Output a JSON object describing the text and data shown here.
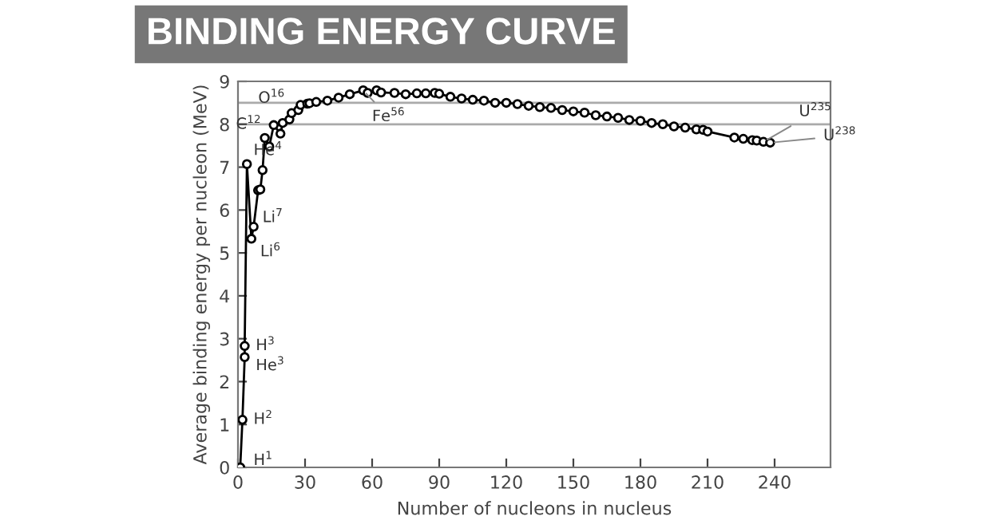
{
  "chart_data": {
    "type": "line",
    "title": "BINDING ENERGY CURVE",
    "xlabel": "Number of nucleons in nucleus",
    "ylabel": "Average binding energy per nucleon (MeV)",
    "x": [
      1,
      2,
      3,
      3,
      4,
      6,
      7,
      9,
      10,
      11,
      12,
      14,
      16,
      19,
      20,
      23,
      24,
      27,
      28,
      31,
      32,
      35,
      40,
      45,
      50,
      56,
      58,
      62,
      64,
      70,
      75,
      80,
      84,
      88,
      90,
      95,
      100,
      105,
      110,
      115,
      120,
      125,
      130,
      135,
      140,
      145,
      150,
      155,
      160,
      165,
      170,
      175,
      180,
      185,
      190,
      195,
      200,
      205,
      208,
      210,
      222,
      226,
      230,
      232,
      235,
      238
    ],
    "series": [
      {
        "color": "#000000",
        "values": [
          0,
          1.11,
          2.57,
          2.83,
          7.07,
          5.33,
          5.61,
          6.46,
          6.48,
          6.93,
          7.68,
          7.48,
          7.98,
          7.78,
          8.03,
          8.11,
          8.26,
          8.33,
          8.45,
          8.48,
          8.49,
          8.52,
          8.55,
          8.62,
          8.7,
          8.79,
          8.73,
          8.79,
          8.74,
          8.73,
          8.7,
          8.72,
          8.72,
          8.73,
          8.71,
          8.64,
          8.6,
          8.57,
          8.55,
          8.5,
          8.5,
          8.47,
          8.43,
          8.4,
          8.38,
          8.33,
          8.3,
          8.27,
          8.21,
          8.18,
          8.15,
          8.1,
          8.08,
          8.03,
          8.0,
          7.95,
          7.92,
          7.88,
          7.87,
          7.83,
          7.69,
          7.66,
          7.63,
          7.62,
          7.59,
          7.57
        ]
      }
    ],
    "marker": "circle",
    "line_style": "solid",
    "grid": false,
    "legend": false,
    "xlim": [
      0,
      265
    ],
    "ylim": [
      0,
      9
    ],
    "xticks": [
      0,
      30,
      60,
      90,
      120,
      150,
      180,
      210,
      240
    ],
    "yticks": [
      0,
      1,
      2,
      3,
      4,
      5,
      6,
      7,
      8,
      9
    ],
    "ref_lines": [
      {
        "axis": "y",
        "value": 8.5,
        "color": "#aaaaaa"
      },
      {
        "axis": "y",
        "value": 8,
        "color": "#aaaaaa"
      }
    ],
    "annotations": [
      {
        "text": "H$^{1}$",
        "x": 1,
        "y": 0
      },
      {
        "text": "H$^{2}$",
        "x": 2,
        "y": 1.11
      },
      {
        "text": "H$^{3}$",
        "x": 3,
        "y": 2.83
      },
      {
        "text": "He$^{3}$",
        "x": 3,
        "y": 2.57
      },
      {
        "text": "He$^{4}$",
        "x": 4,
        "y": 7.07
      },
      {
        "text": "Li$^{7}$",
        "x": 7,
        "y": 5.61
      },
      {
        "text": "Li$^{6}$",
        "x": 6,
        "y": 5.33
      },
      {
        "text": "C$^{12}$",
        "x": 12,
        "y": 7.68
      },
      {
        "text": "O$^{16}$",
        "x": 16,
        "y": 7.98
      },
      {
        "text": "Fe$^{56}$",
        "x": 56,
        "y": 8.79
      },
      {
        "text": "U$^{235}$",
        "x": 235,
        "y": 7.59
      },
      {
        "text": "U$^{238}$",
        "x": 238,
        "y": 7.57
      }
    ]
  }
}
